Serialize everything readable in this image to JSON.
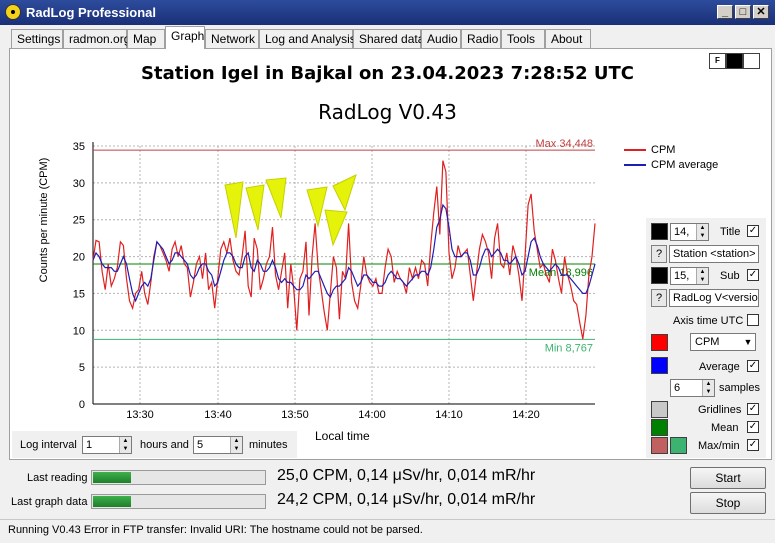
{
  "window": {
    "title": "RadLog Professional"
  },
  "tabs": [
    "Settings",
    "radmon.org",
    "Map",
    "Graph",
    "Network",
    "Log and Analysis",
    "Shared data",
    "Audio",
    "Radio",
    "Tools",
    "About"
  ],
  "active_tab": "Graph",
  "chart_title": "Station Igel in Bajkal on 23.04.2023 7:28:52 UTC",
  "chart_subtitle": "RadLog V0.43",
  "chart_data": {
    "type": "line",
    "ylabel": "Counts per minute (CPM)",
    "xlabel": "Local time",
    "ylim": [
      0,
      35
    ],
    "yticks": [
      "0",
      "5",
      "10",
      "15",
      "20",
      "25",
      "30",
      "35"
    ],
    "xticks": [
      "13:30",
      "13:40",
      "13:50",
      "14:00",
      "14:10",
      "14:20"
    ],
    "grid": true,
    "legend": "top-right",
    "series": [
      {
        "name": "CPM",
        "color": "#e02020",
        "values": [
          19.5,
          22.2,
          22.0,
          18.0,
          15.5,
          19.0,
          16.0,
          17.0,
          18.5,
          22.0,
          21.5,
          17.0,
          14.0,
          13.0,
          15.0,
          15.5,
          18.0,
          15.0,
          13.5,
          16.5,
          20.0,
          22.0,
          21.5,
          20.5,
          19.5,
          18.0,
          21.0,
          22.0,
          20.0,
          21.5,
          19.0,
          18.5,
          14.5,
          16.5,
          19.0,
          20.0,
          17.0,
          20.5,
          15.5,
          16.5,
          13.0,
          17.0,
          21.0,
          22.0,
          20.5,
          22.5,
          19.5,
          18.0,
          17.5,
          20.0,
          23.5,
          16.0,
          14.5,
          22.5,
          21.0,
          15.5,
          17.0,
          19.0,
          20.0,
          24.0,
          17.5,
          15.5,
          18.0,
          20.5,
          13.0,
          19.0,
          15.5,
          10.0,
          17.0,
          18.0,
          22.0,
          12.0,
          20.0,
          24.5,
          18.5,
          15.5,
          12.5,
          10.0,
          15.0,
          20.0,
          18.5,
          11.5,
          18.0,
          17.0,
          24.5,
          16.5,
          14.0,
          13.0,
          16.0,
          20.0,
          17.5,
          16.5,
          16.0,
          17.0,
          15.0,
          15.0,
          18.5,
          21.0,
          20.0,
          16.5,
          18.0,
          17.0,
          16.5,
          15.0,
          18.5,
          17.0,
          18.5,
          17.0,
          19.5,
          19.0,
          16.0,
          21.5,
          26.0,
          29.5,
          23.0,
          33.0,
          31.5,
          20.5,
          17.0,
          18.5,
          21.5,
          20.0,
          20.5,
          21.0,
          17.5,
          14.0,
          17.5,
          21.0,
          23.0,
          22.0,
          20.5,
          17.0,
          22.5,
          24.5,
          19.0,
          18.5,
          20.5,
          17.5,
          21.5,
          20.0,
          17.5,
          14.0,
          20.0,
          27.0,
          28.5,
          23.5,
          21.0,
          18.5,
          19.0,
          17.5,
          16.5,
          21.0,
          19.5,
          17.0,
          15.0,
          20.0,
          17.5,
          16.0,
          14.0,
          13.5,
          11.0,
          8.8,
          12.0,
          17.5,
          20.0,
          24.5
        ],
        "min": "Min 8,767",
        "max": "Max 34,448",
        "max_value": 34.448,
        "min_value": 8.767
      },
      {
        "name": "CPM average",
        "color": "#1e1eb4",
        "values": [
          19.5,
          20.5,
          20.0,
          19.0,
          18.5,
          18.5,
          18.5,
          18.0,
          18.0,
          19.0,
          20.0,
          19.0,
          17.0,
          15.0,
          14.0,
          15.0,
          16.0,
          16.5,
          16.0,
          17.0,
          19.5,
          22.0,
          21.5,
          21.0,
          20.0,
          19.0,
          19.5,
          20.5,
          20.5,
          20.0,
          19.5,
          19.0,
          17.5,
          17.0,
          17.5,
          18.5,
          19.0,
          19.0,
          18.0,
          17.5,
          16.0,
          16.5,
          18.0,
          19.5,
          20.5,
          20.5,
          20.0,
          19.0,
          18.5,
          18.5,
          20.0,
          20.5,
          18.5,
          18.0,
          19.5,
          19.0,
          18.0,
          18.0,
          18.5,
          19.5,
          18.5,
          17.0,
          16.5,
          17.0,
          16.5,
          16.5,
          16.0,
          15.5,
          15.5,
          16.0,
          17.5,
          17.0,
          17.5,
          18.0,
          18.0,
          17.0,
          16.0,
          15.0,
          14.5,
          15.5,
          16.0,
          16.0,
          16.5,
          17.0,
          18.5,
          18.0,
          17.0,
          16.0,
          16.5,
          17.5,
          17.5,
          17.0,
          16.5,
          16.5,
          16.0,
          16.0,
          16.5,
          17.5,
          18.0,
          17.5,
          17.0,
          17.0,
          16.5,
          16.0,
          16.5,
          17.0,
          17.5,
          17.5,
          18.0,
          18.0,
          17.5,
          18.5,
          21.0,
          24.0,
          25.0,
          27.0,
          26.5,
          24.0,
          21.0,
          20.0,
          20.0,
          20.0,
          20.5,
          20.5,
          19.5,
          17.5,
          17.5,
          18.5,
          20.0,
          21.0,
          21.0,
          20.0,
          20.5,
          21.0,
          20.5,
          19.5,
          19.5,
          19.0,
          19.5,
          20.0,
          19.0,
          17.5,
          18.0,
          20.0,
          22.0,
          22.5,
          21.5,
          20.0,
          19.0,
          18.5,
          18.0,
          18.5,
          19.0,
          18.5,
          17.5,
          17.5,
          17.5,
          17.0,
          16.5,
          16.0,
          15.5,
          15.0,
          15.0,
          16.0,
          17.5,
          19.0
        ],
        "mean": "Mean 18,996",
        "mean_value": 18.996
      }
    ],
    "x_start_minutes": 23.5,
    "x_end_minutes": 28.7
  },
  "controls": {
    "title_size": "14,",
    "title_label": "Title",
    "title_text": "Station <station> i",
    "sub_size": "15,",
    "sub_label": "Sub",
    "sub_text": "RadLog V<versio",
    "axis_time_utc": "Axis time UTC",
    "series_select": "CPM",
    "average_label": "Average",
    "samples_value": "6",
    "samples_label": "samples",
    "gridlines_label": "Gridlines",
    "mean_label": "Mean",
    "maxmin_label": "Max/min",
    "q": "?"
  },
  "colors": {
    "title_fore": "#000000",
    "sub_fore": "#000000",
    "cpm": "#ff0000",
    "average": "#0000ff",
    "gridlines": "#a0a0a0",
    "mean": "#008000",
    "max": "#c04040",
    "min": "#3cb371"
  },
  "log_interval": {
    "label": "Log interval",
    "hours_value": "1",
    "hours_label": "hours and",
    "minutes_value": "5",
    "minutes_label": "minutes"
  },
  "readings": {
    "last_reading_label": "Last reading",
    "last_reading_value": "25,0 CPM, 0,14 μSv/hr, 0,014 mR/hr",
    "last_reading_level": 0.22,
    "last_graph_label": "Last graph data",
    "last_graph_value": "24,2 CPM, 0,14 μSv/hr, 0,014 mR/hr",
    "last_graph_level": 0.22
  },
  "buttons": {
    "start": "Start",
    "stop": "Stop",
    "f": "F"
  },
  "status": "Running   V0.43   Error in FTP transfer: Invalid URI: The hostname could not be parsed."
}
